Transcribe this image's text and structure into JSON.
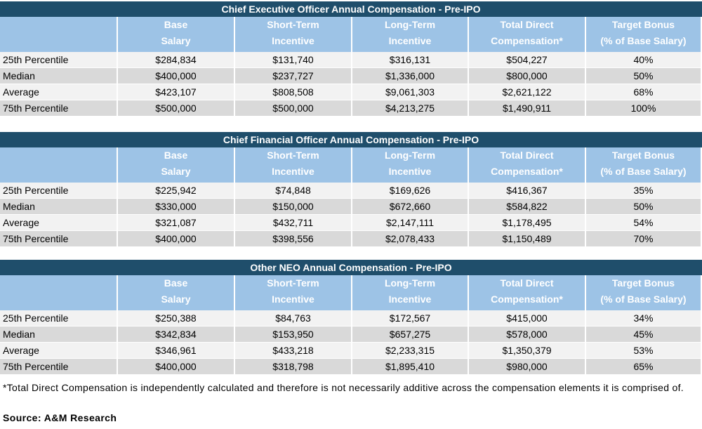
{
  "tables": [
    {
      "title": "Chief Executive Officer Annual Compensation - Pre-IPO",
      "columns": [
        [
          "Base",
          "Salary"
        ],
        [
          "Short-Term",
          "Incentive"
        ],
        [
          "Long-Term",
          "Incentive"
        ],
        [
          "Total Direct",
          "Compensation*"
        ],
        [
          "Target Bonus",
          "(% of Base Salary)"
        ]
      ],
      "rows": [
        [
          "25th Percentile",
          "$284,834",
          "$131,740",
          "$316,131",
          "$504,227",
          "40%"
        ],
        [
          "Median",
          "$400,000",
          "$237,727",
          "$1,336,000",
          "$800,000",
          "50%"
        ],
        [
          "Average",
          "$423,107",
          "$808,508",
          "$9,061,303",
          "$2,621,122",
          "68%"
        ],
        [
          "75th Percentile",
          "$500,000",
          "$500,000",
          "$4,213,275",
          "$1,490,911",
          "100%"
        ]
      ]
    },
    {
      "title": "Chief Financial Officer Annual Compensation - Pre-IPO",
      "columns": [
        [
          "Base",
          "Salary"
        ],
        [
          "Short-Term",
          "Incentive"
        ],
        [
          "Long-Term",
          "Incentive"
        ],
        [
          "Total Direct",
          "Compensation*"
        ],
        [
          "Target Bonus",
          "(% of Base Salary)"
        ]
      ],
      "rows": [
        [
          "25th Percentile",
          "$225,942",
          "$74,848",
          "$169,626",
          "$416,367",
          "35%"
        ],
        [
          "Median",
          "$330,000",
          "$150,000",
          "$672,660",
          "$584,822",
          "50%"
        ],
        [
          "Average",
          "$321,087",
          "$432,711",
          "$2,147,111",
          "$1,178,495",
          "54%"
        ],
        [
          "75th Percentile",
          "$400,000",
          "$398,556",
          "$2,078,433",
          "$1,150,489",
          "70%"
        ]
      ]
    },
    {
      "title": "Other NEO Annual Compensation - Pre-IPO",
      "columns": [
        [
          "Base",
          "Salary"
        ],
        [
          "Short-Term",
          "Incentive"
        ],
        [
          "Long-Term",
          "Incentive"
        ],
        [
          "Total Direct",
          "Compensation*"
        ],
        [
          "Target Bonus",
          "(% of Base Salary)"
        ]
      ],
      "rows": [
        [
          "25th Percentile",
          "$250,388",
          "$84,763",
          "$172,567",
          "$415,000",
          "34%"
        ],
        [
          "Median",
          "$342,834",
          "$153,950",
          "$657,275",
          "$578,000",
          "45%"
        ],
        [
          "Average",
          "$346,961",
          "$433,218",
          "$2,233,315",
          "$1,350,379",
          "53%"
        ],
        [
          "75th Percentile",
          "$400,000",
          "$318,798",
          "$1,895,410",
          "$980,000",
          "65%"
        ]
      ]
    }
  ],
  "footnote": "*Total Direct Compensation is independently calculated and therefore is not necessarily additive across the compensation elements it is comprised of.",
  "source": "Source: A&M Research"
}
